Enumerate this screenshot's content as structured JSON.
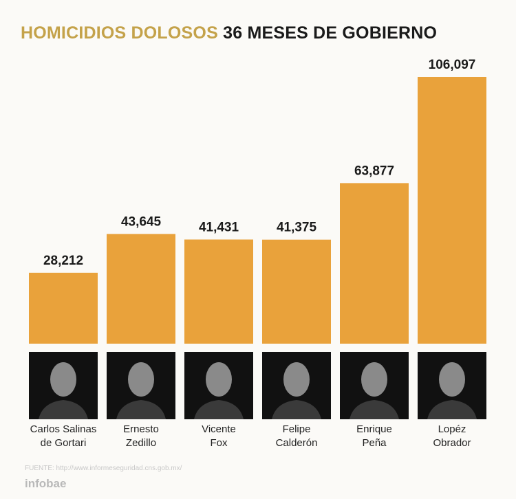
{
  "chart_data": {
    "type": "bar",
    "title_highlight": "HOMICIDIOS DOLOSOS",
    "title": "36 MESES DE GOBIERNO",
    "categories": [
      "Carlos Salinas\nde Gortari",
      "Ernesto\nZedillo",
      "Vicente\nFox",
      "Felipe\nCalderón",
      "Enrique\nPeña",
      "Lopéz\nObrador"
    ],
    "values": [
      28212,
      43645,
      41431,
      41375,
      63877,
      106097
    ],
    "value_labels": [
      "28,212",
      "43,645",
      "41,431",
      "41,375",
      "63,877",
      "106,097"
    ],
    "color": "#e9a23b",
    "source": "FUENTE: http://www.informeseguridad.cns.gob.mx/",
    "brand": "infobae"
  }
}
